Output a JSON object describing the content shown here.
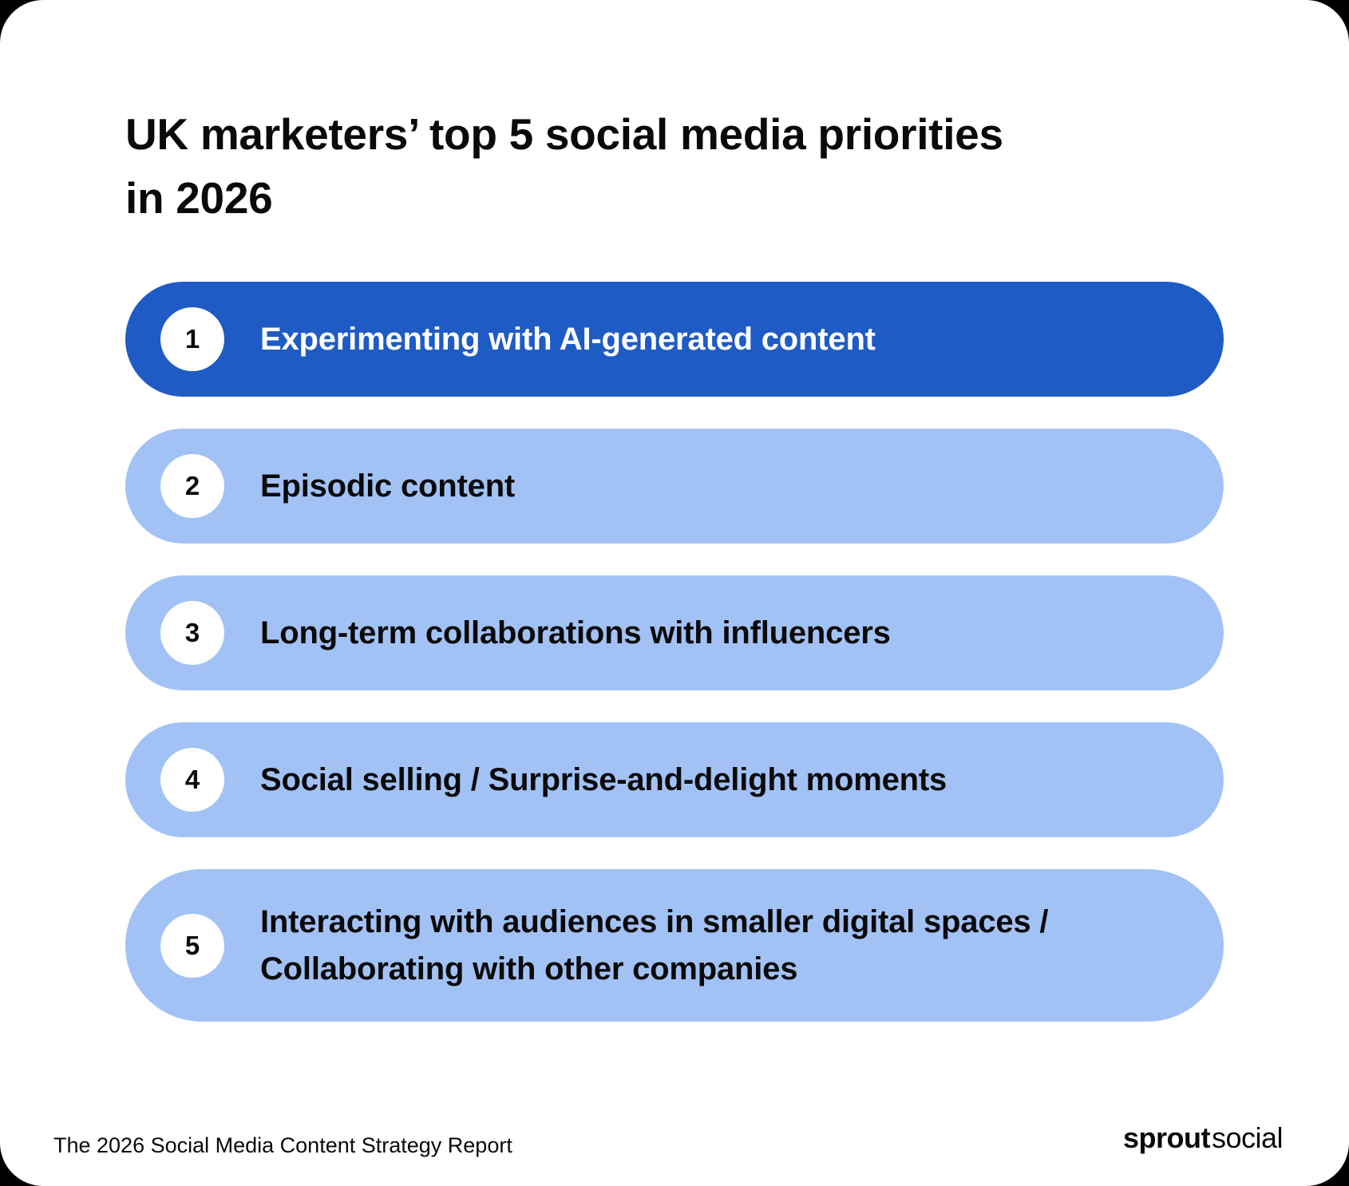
{
  "header": {
    "title_line1": "UK marketers’ top 5 social media priorities",
    "title_line2": "in 2026"
  },
  "priorities": [
    {
      "rank": "1",
      "lines": [
        "Experimenting with AI-generated content"
      ],
      "highlighted": true
    },
    {
      "rank": "2",
      "lines": [
        "Episodic content"
      ],
      "highlighted": false
    },
    {
      "rank": "3",
      "lines": [
        "Long-term collaborations with influencers"
      ],
      "highlighted": false
    },
    {
      "rank": "4",
      "lines": [
        "Social selling / Surprise-and-delight moments"
      ],
      "highlighted": false
    },
    {
      "rank": "5",
      "lines": [
        "Interacting with audiences in smaller digital spaces /",
        "Collaborating with other companies"
      ],
      "highlighted": false
    }
  ],
  "footer": {
    "report_title": "The 2026 Social Media Content Strategy Report",
    "logo_bold": "sprout",
    "logo_light": "social"
  },
  "colors": {
    "highlight_pill": "#1f5bc4",
    "pill": "#a2c2f6",
    "badge": "#ffffff",
    "text": "#0a0a0a",
    "highlight_text": "#ffffff",
    "card": "#ffffff"
  }
}
